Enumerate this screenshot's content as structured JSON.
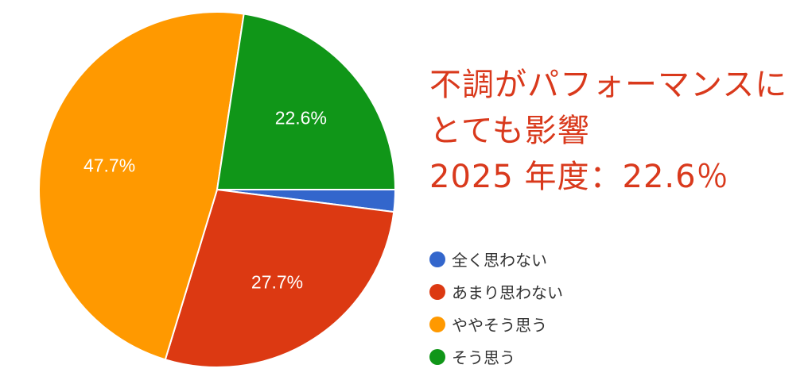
{
  "title": {
    "line1": "不調がパフォーマンスに",
    "line2": "とても影響",
    "line3": "2025 年度：22.6％",
    "color": "#d9391c"
  },
  "chart_data": {
    "type": "pie",
    "title": "不調がパフォーマンスにとても影響 2025 年度：22.6％",
    "categories": [
      "全く思わない",
      "あまり思わない",
      "ややそう思う",
      "そう思う"
    ],
    "values": [
      2.0,
      27.7,
      47.7,
      22.6
    ],
    "data_labels": [
      "",
      "27.7%",
      "47.7%",
      "22.6%"
    ],
    "colors": [
      "#3366cc",
      "#dc3912",
      "#ff9900",
      "#109618"
    ],
    "legend_position": "right",
    "start_angle_deg": 90,
    "direction": "counterclockwise-from-3-oclock"
  },
  "legend": {
    "items": [
      {
        "label": "全く思わない",
        "color": "#3366cc"
      },
      {
        "label": "あまり思わない",
        "color": "#dc3912"
      },
      {
        "label": "ややそう思う",
        "color": "#ff9900"
      },
      {
        "label": "そう思う",
        "color": "#109618"
      }
    ]
  }
}
